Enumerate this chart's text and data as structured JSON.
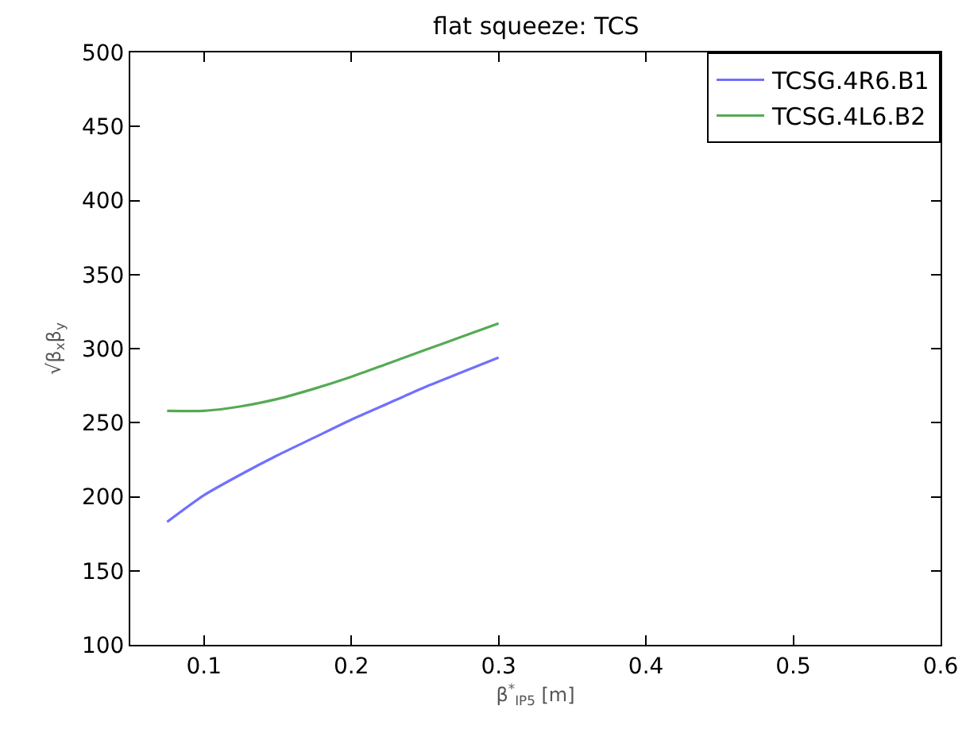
{
  "chart_data": {
    "type": "line",
    "title": "flat squeeze: TCS",
    "xlabel": "β$^{*}$$_{IP5}$ [m]",
    "ylabel": "√β$_{x}$β$_{y}$",
    "xlim": [
      0.05,
      0.6
    ],
    "xticks": [
      0.1,
      0.2,
      0.3,
      0.4,
      0.5,
      0.6
    ],
    "ylim": [
      100,
      500
    ],
    "yticks": [
      100,
      150,
      200,
      250,
      300,
      350,
      400,
      450,
      500
    ],
    "grid": false,
    "legend": "top right",
    "marker": "none",
    "line_style": "solid",
    "x": [
      0.075,
      0.1,
      0.125,
      0.15,
      0.175,
      0.2,
      0.225,
      0.25,
      0.275,
      0.3
    ],
    "series": [
      {
        "name": "TCSG.4R6.B1",
        "color": "#7070ff",
        "values": [
          183,
          201,
          215,
          228,
          240,
          252,
          263,
          274,
          284,
          294
        ]
      },
      {
        "name": "TCSG.4L6.B2",
        "color": "#55aa55",
        "values": [
          258,
          258,
          261,
          266,
          273,
          281,
          290,
          299,
          308,
          317
        ]
      }
    ]
  }
}
